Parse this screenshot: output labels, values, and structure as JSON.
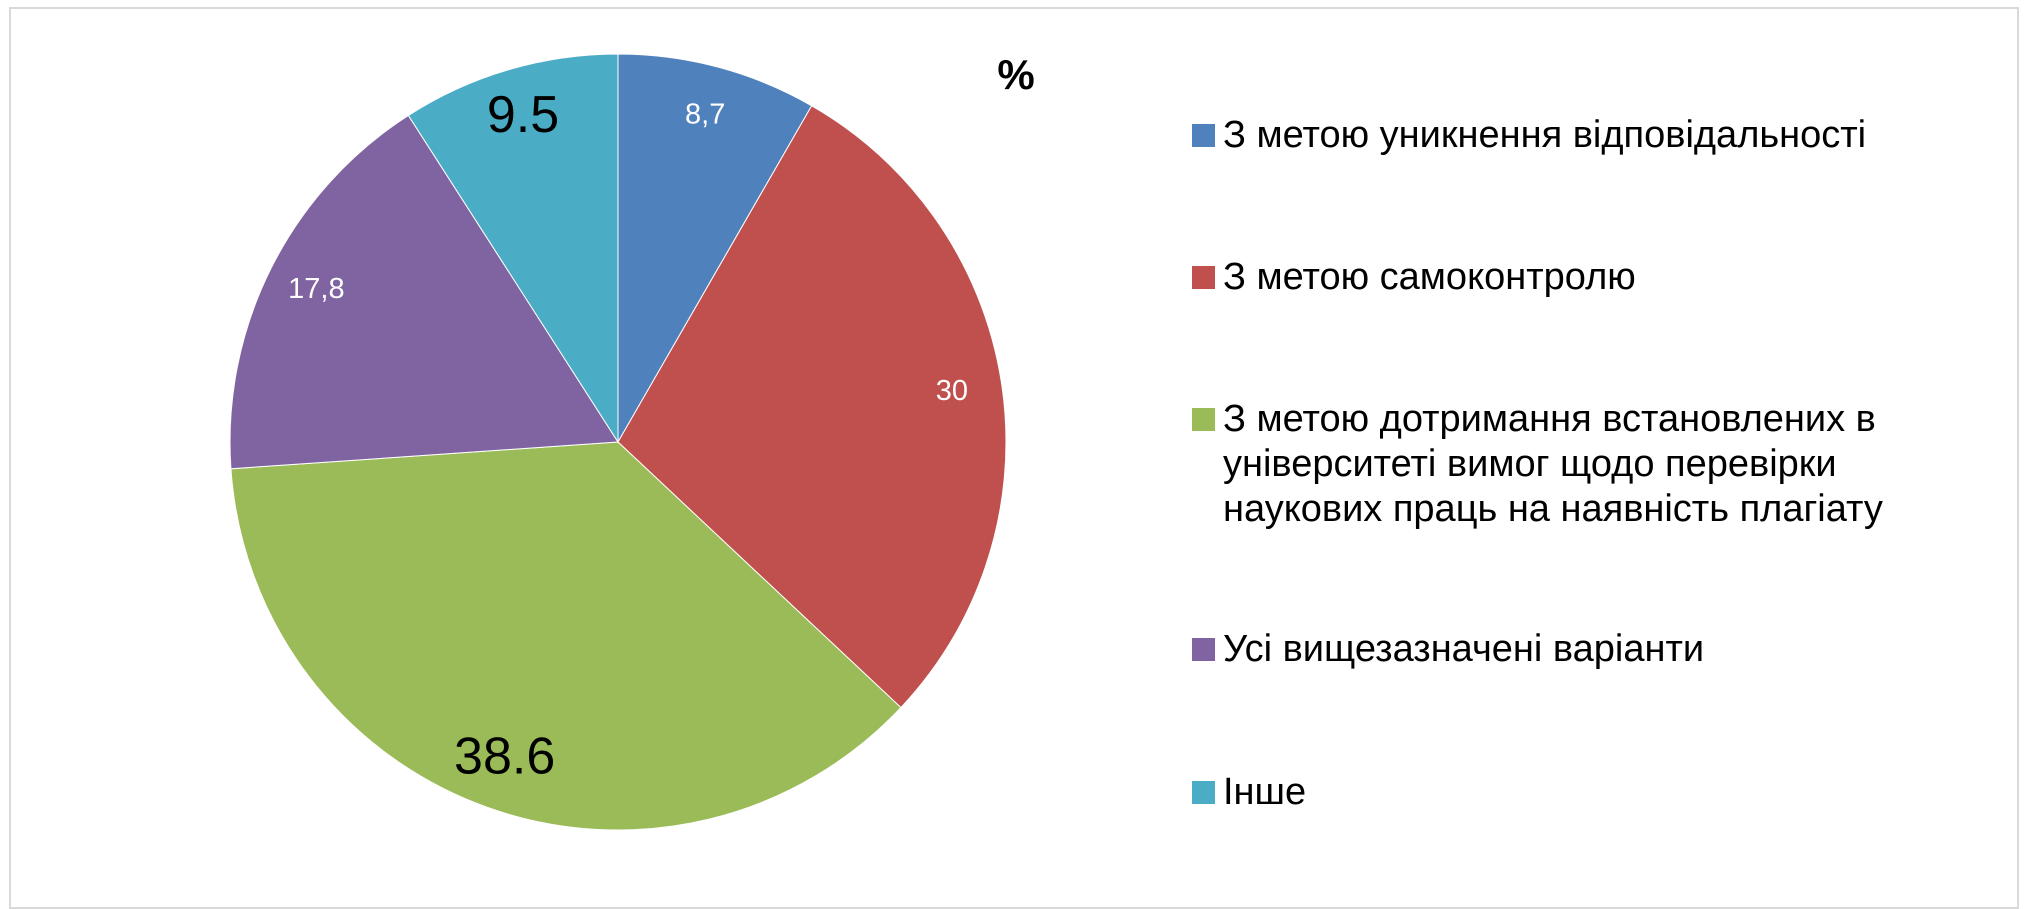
{
  "chart_data": {
    "type": "pie",
    "title": "%",
    "categories": [
      "З метою уникнення відповідальності",
      "З метою самоконтролю",
      "З метою дотримання встановлених в університеті вимог щодо перевірки наукових праць на наявність плагіату",
      "Усі вищезазначені варіанти",
      "Інше"
    ],
    "values": [
      8.7,
      30,
      38.6,
      17.8,
      9.5
    ],
    "value_labels": [
      "8,7",
      "30",
      "38.6",
      "17,8",
      "9.5"
    ],
    "colors": [
      "#4f81bd",
      "#c0504d",
      "#9bbb59",
      "#8064a2",
      "#4bacc6"
    ],
    "legend": "right"
  }
}
